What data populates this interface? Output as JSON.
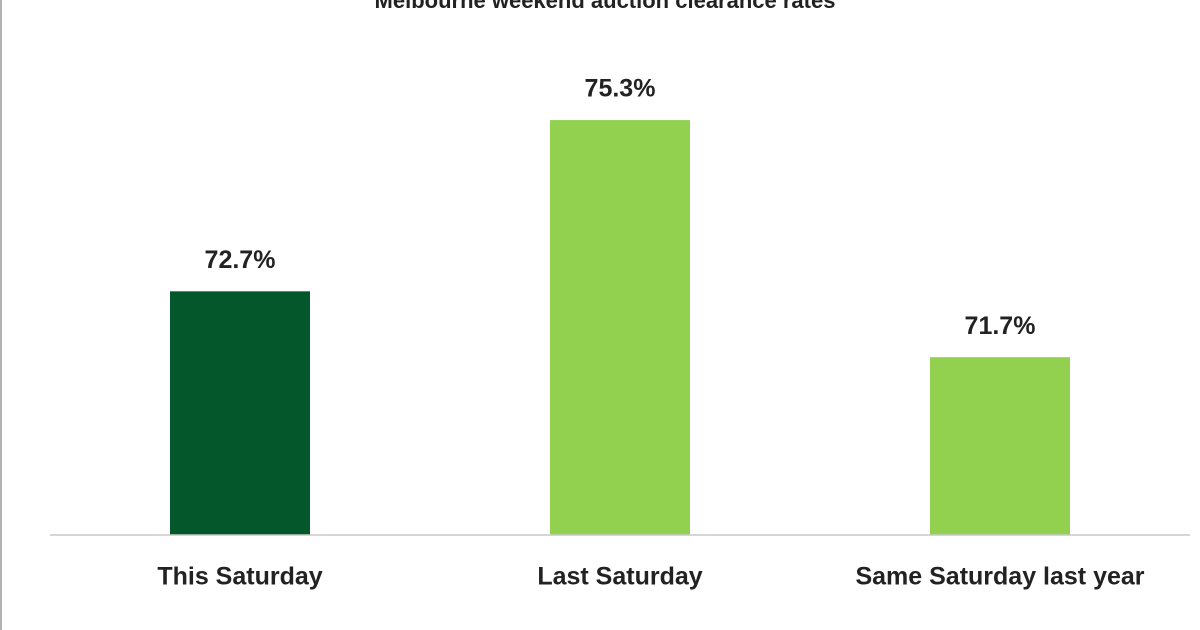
{
  "chart_data": {
    "type": "bar",
    "title": "Melbourne weekend auction clearance rates",
    "categories": [
      "This Saturday",
      "Last Saturday",
      "Same Saturday last year"
    ],
    "values": [
      72.7,
      75.3,
      71.7
    ],
    "value_labels": [
      "72.7%",
      "75.3%",
      "71.7%"
    ],
    "colors": [
      "#03572a",
      "#92d050",
      "#92d050"
    ],
    "ylim": [
      69,
      76
    ]
  }
}
